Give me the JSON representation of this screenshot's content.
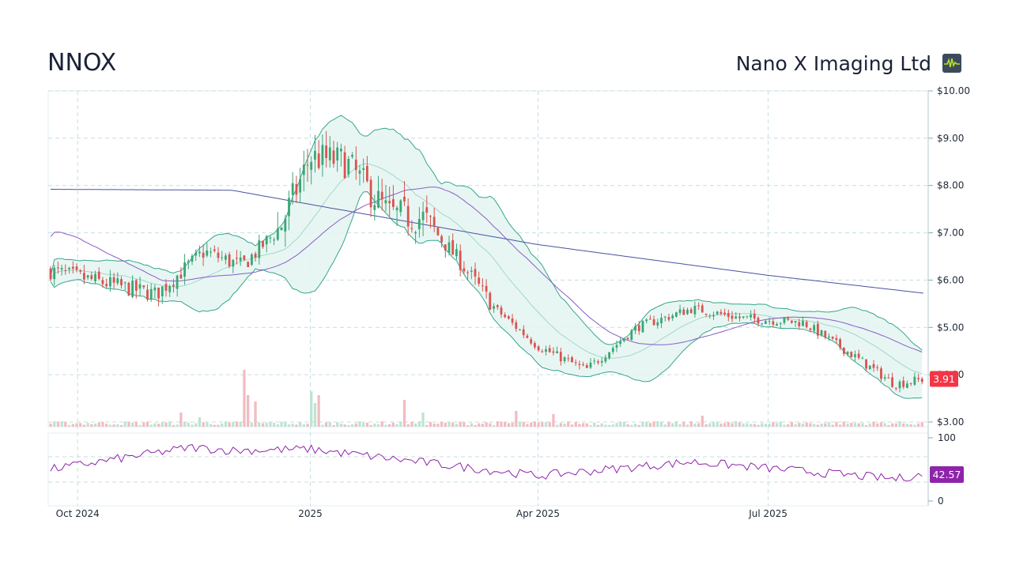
{
  "header": {
    "ticker": "NNOX",
    "company_name": "Nano X Imaging Ltd",
    "logo_icon": "pulse-line-icon",
    "logo_color": "#3c4a5c",
    "logo_line_color": "#b6e02b"
  },
  "chart_data": {
    "type": "candlestick",
    "price_axis": {
      "ticks": [
        "$10.00",
        "$9.00",
        "$8.00",
        "$7.00",
        "$6.00",
        "$5.00",
        "$4.00",
        "$3.00"
      ],
      "tick_values": [
        10,
        9,
        8,
        7,
        6,
        5,
        4,
        3
      ],
      "ylim": [
        3,
        10
      ]
    },
    "rsi_axis": {
      "ticks": [
        "100",
        "0"
      ],
      "tick_values": [
        100,
        0
      ],
      "ylim": [
        0,
        100
      ],
      "bands": [
        70,
        30
      ]
    },
    "x_axis_labels": [
      "Oct 2024",
      "2025",
      "Apr 2025",
      "Jul 2025"
    ],
    "last_price_label": "3.91",
    "last_rsi_label": "42.57",
    "colors": {
      "up": "#3aa676",
      "down": "#d9534f",
      "bollinger": "#35a68a",
      "bollinger_fill": "#e4f4f1",
      "ma_long": "#4a52a0",
      "ma_short": "#8a5cc7",
      "rsi": "#8e24aa",
      "price_badge": "#f23645",
      "rsi_badge": "#8e24aa",
      "grid": "#c7dde2"
    },
    "series": [
      {
        "name": "Price (approx. close)",
        "x": [
          "2024-09-20",
          "2024-10-15",
          "2024-11-01",
          "2024-11-20",
          "2024-12-05",
          "2024-12-20",
          "2025-01-01",
          "2025-01-15",
          "2025-02-01",
          "2025-02-15",
          "2025-03-01",
          "2025-03-15",
          "2025-04-01",
          "2025-04-20",
          "2025-05-10",
          "2025-06-01",
          "2025-06-20",
          "2025-07-15",
          "2025-08-01",
          "2025-08-20",
          "2025-09-01"
        ],
        "values": [
          6.2,
          5.9,
          5.7,
          6.6,
          6.3,
          7.1,
          8.6,
          8.5,
          7.4,
          7.3,
          6.4,
          5.4,
          4.6,
          4.1,
          5.0,
          5.4,
          5.2,
          5.1,
          4.5,
          3.8,
          3.91
        ]
      },
      {
        "name": "Long moving average",
        "x": [
          "2024-09-20",
          "2024-12-01",
          "2025-01-01",
          "2025-04-01",
          "2025-07-01",
          "2025-09-01"
        ],
        "values": [
          7.92,
          7.9,
          7.6,
          6.75,
          6.1,
          5.72
        ]
      },
      {
        "name": "RSI",
        "x": [
          "2024-09-20",
          "2024-11-15",
          "2024-12-01",
          "2025-01-01",
          "2025-04-01",
          "2025-06-01",
          "2025-08-20",
          "2025-09-01"
        ],
        "values": [
          50,
          85,
          80,
          82,
          40,
          62,
          35,
          42.57
        ]
      }
    ]
  }
}
